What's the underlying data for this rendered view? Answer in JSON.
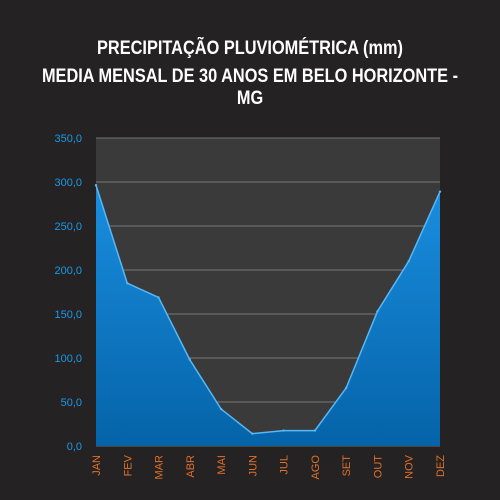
{
  "chart_data": {
    "type": "area",
    "title_line1": "PRECIPITAÇÃO PLUVIOMÉTRICA (mm)",
    "title_line2": "MEDIA MENSAL DE 30 ANOS EM BELO HORIZONTE - MG",
    "categories": [
      "JAN",
      "FEV",
      "MAR",
      "ABR",
      "MAI",
      "JUN",
      "JUL",
      "AGO",
      "SET",
      "OUT",
      "NOV",
      "DEZ"
    ],
    "values": [
      296.3,
      185.0,
      168.8,
      98.0,
      42.0,
      14.0,
      17.5,
      17.5,
      66.0,
      153.0,
      210.0,
      289.0
    ],
    "ylim": [
      0,
      350
    ],
    "y_ticks": [
      "0,0",
      "50,0",
      "100,0",
      "150,0",
      "200,0",
      "250,0",
      "300,0",
      "350,0"
    ],
    "grid": true,
    "colors": {
      "background": "#242223",
      "plot_area": "#3b3a3a",
      "area_top": "#1a8ee0",
      "area_bottom": "#0563a8",
      "area_line": "#58b7f5",
      "gridline": "#8a8a8a",
      "y_tick_text": "#1a9ae8",
      "x_tick_text": "#e0702a"
    }
  }
}
